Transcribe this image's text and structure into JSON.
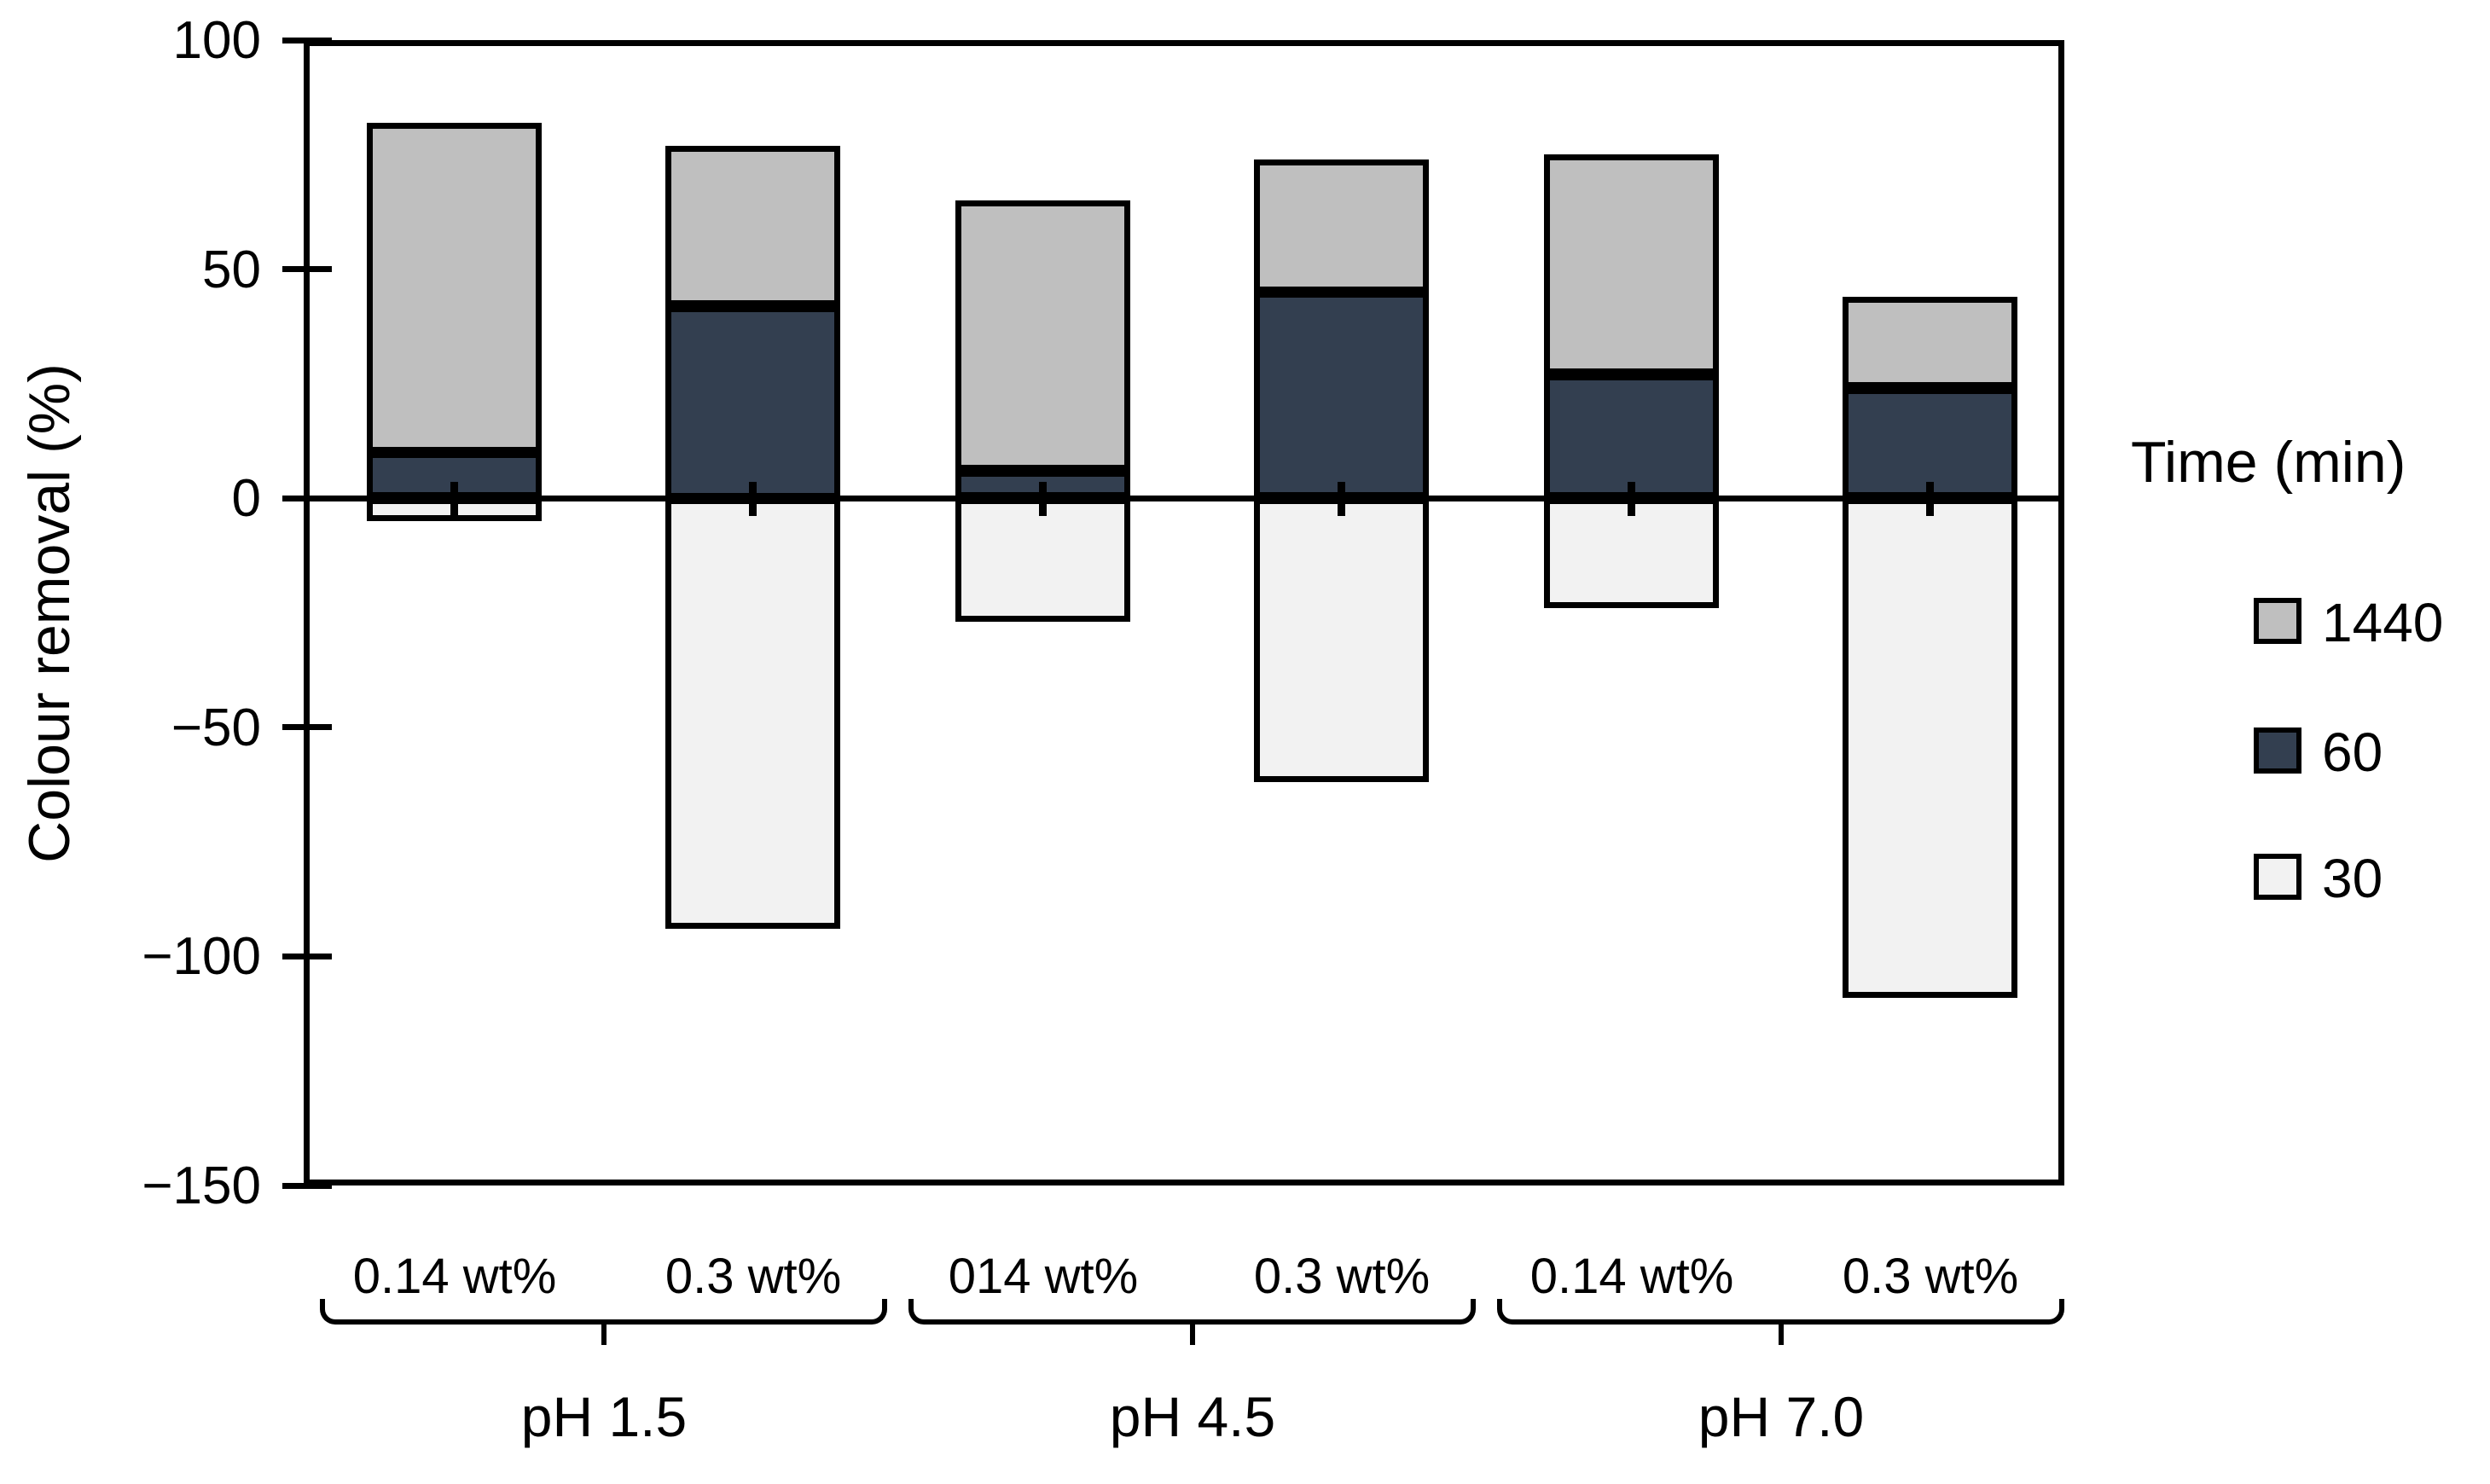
{
  "chart_data": {
    "type": "bar",
    "stacked": true,
    "title": "",
    "ylabel": "Colour removal (%)",
    "xlabel": "",
    "ylim": [
      -150,
      100
    ],
    "grid": false,
    "yticks": [
      100,
      50,
      0,
      -50,
      -100,
      -150
    ],
    "ytick_labels": [
      "100",
      "50",
      "0",
      "−50",
      "−100",
      "−150"
    ],
    "legend": {
      "title": "Time (min)",
      "position": "right",
      "entries": [
        {
          "label": "1440",
          "color": "#BFBFBF"
        },
        {
          "label": "60",
          "color": "#333F50"
        },
        {
          "label": "30",
          "color": "#F2F2F2"
        }
      ]
    },
    "error_whisker": {
      "above": 3.5,
      "below": 4
    },
    "groups": [
      {
        "label": "pH 1.5",
        "bars": [
          {
            "label": "0.14 wt%",
            "segments": {
              "t30": -5,
              "t60": 10,
              "t1440": 82
            }
          },
          {
            "label": "0.3 wt%",
            "segments": {
              "t30": -94,
              "t60": 42,
              "t1440": 77
            }
          }
        ]
      },
      {
        "label": "pH 4.5",
        "bars": [
          {
            "label": "014 wt%",
            "segments": {
              "t30": -27,
              "t60": 6,
              "t1440": 65
            }
          },
          {
            "label": "0.3 wt%",
            "segments": {
              "t30": -62,
              "t60": 45,
              "t1440": 74
            }
          }
        ]
      },
      {
        "label": "pH 7.0",
        "bars": [
          {
            "label": "0.14 wt%",
            "segments": {
              "t30": -24,
              "t60": 27,
              "t1440": 75
            }
          },
          {
            "label": "0.3 wt%",
            "segments": {
              "t30": -109,
              "t60": 24,
              "t1440": 44
            }
          }
        ]
      }
    ],
    "colors": {
      "series_1440": "#BFBFBF",
      "series_60": "#333F50",
      "series_30": "#F2F2F2",
      "line": "#000000",
      "background": "#FFFFFF"
    }
  }
}
